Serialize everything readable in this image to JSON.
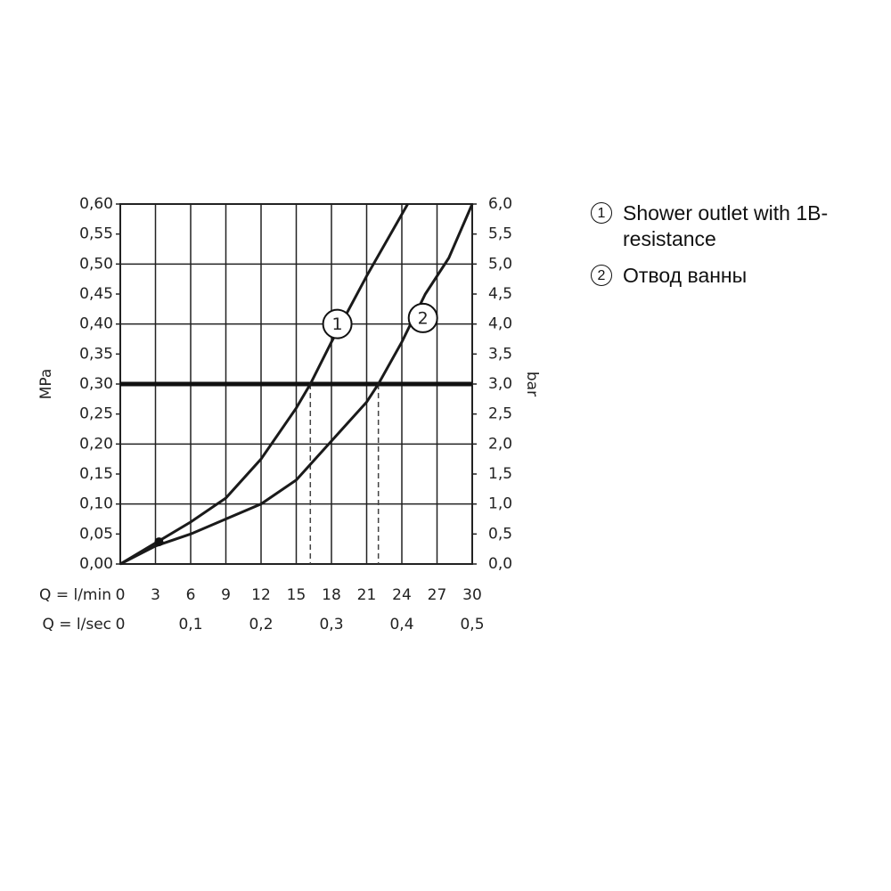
{
  "chart_data": {
    "type": "line",
    "xlabel": "Q = l/min",
    "x2label": "Q = l/sec",
    "ylabel": "MPa",
    "y2label": "bar",
    "xlim": [
      0,
      30
    ],
    "xticks": [
      0,
      3,
      6,
      9,
      12,
      15,
      18,
      21,
      24,
      27,
      30
    ],
    "x2lim": [
      0,
      0.5
    ],
    "x2ticks": [
      0,
      {
        "value": 0.1,
        "label": "0,1"
      },
      {
        "value": 0.2,
        "label": "0,2"
      },
      {
        "value": 0.3,
        "label": "0,3"
      },
      {
        "value": 0.4,
        "label": "0,4"
      },
      {
        "value": 0.5,
        "label": "0,5"
      }
    ],
    "ylim": [
      0,
      0.6
    ],
    "yticks": [
      {
        "value": 0,
        "label": "0,00"
      },
      {
        "value": 0.05,
        "label": "0,05"
      },
      {
        "value": 0.1,
        "label": "0,10"
      },
      {
        "value": 0.15,
        "label": "0,15"
      },
      {
        "value": 0.2,
        "label": "0,20"
      },
      {
        "value": 0.25,
        "label": "0,25"
      },
      {
        "value": 0.3,
        "label": "0,30"
      },
      {
        "value": 0.35,
        "label": "0,35"
      },
      {
        "value": 0.4,
        "label": "0,40"
      },
      {
        "value": 0.45,
        "label": "0,45"
      },
      {
        "value": 0.5,
        "label": "0,50"
      },
      {
        "value": 0.55,
        "label": "0,55"
      },
      {
        "value": 0.6,
        "label": "0,60"
      }
    ],
    "y2lim": [
      0,
      6
    ],
    "y2ticks": [
      {
        "value": 0,
        "label": "0,0"
      },
      {
        "value": 0.5,
        "label": "0,5"
      },
      {
        "value": 1,
        "label": "1,0"
      },
      {
        "value": 1.5,
        "label": "1,5"
      },
      {
        "value": 2,
        "label": "2,0"
      },
      {
        "value": 2.5,
        "label": "2,5"
      },
      {
        "value": 3,
        "label": "3,0"
      },
      {
        "value": 3.5,
        "label": "3,5"
      },
      {
        "value": 4,
        "label": "4,0"
      },
      {
        "value": 4.5,
        "label": "4,5"
      },
      {
        "value": 5,
        "label": "5,0"
      },
      {
        "value": 5.5,
        "label": "5,5"
      },
      {
        "value": 6,
        "label": "6,0"
      }
    ],
    "grid": true,
    "reference_y": 0.3,
    "crossings": [
      16.2,
      22.0
    ],
    "marker": {
      "x": 3.3,
      "y": 0.037
    },
    "series": [
      {
        "name": "Shower outlet with 1B-resistance",
        "label": "1",
        "color": "#1a1a1a",
        "x": [
          0,
          3,
          6,
          9,
          12,
          15,
          16.2,
          18,
          21,
          24.5
        ],
        "values": [
          0,
          0.035,
          0.07,
          0.11,
          0.175,
          0.26,
          0.3,
          0.37,
          0.48,
          0.6
        ],
        "label_at": {
          "x": 18.5,
          "y": 0.4
        }
      },
      {
        "name": "Отвод ванны",
        "label": "2",
        "color": "#1a1a1a",
        "x": [
          0,
          3,
          6,
          9,
          12,
          15,
          18,
          21,
          22,
          24,
          26,
          28,
          30
        ],
        "values": [
          0,
          0.03,
          0.05,
          0.075,
          0.1,
          0.14,
          0.205,
          0.27,
          0.3,
          0.37,
          0.45,
          0.51,
          0.6
        ],
        "label_at": {
          "x": 25.8,
          "y": 0.41
        }
      }
    ]
  }
}
